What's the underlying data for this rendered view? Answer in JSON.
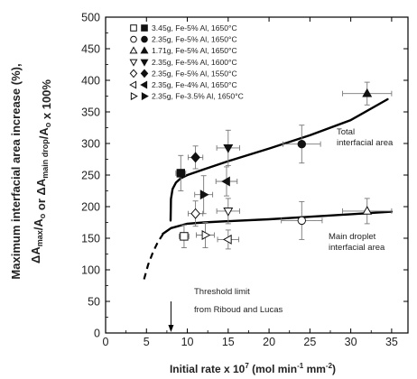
{
  "chart_data": {
    "type": "scatter",
    "xlabel": "Initial rate x 10⁷ (mol min⁻¹ mm⁻²)",
    "ylabel_line1": "Maximum interfacial area increase (%),",
    "ylabel_line2": "ΔAmax/Ao or ΔAmain drop/Ao x 100%",
    "xlim": [
      0,
      37
    ],
    "ylim": [
      0,
      500
    ],
    "xticks": [
      0,
      5,
      10,
      15,
      20,
      25,
      30,
      35
    ],
    "yticks": [
      0,
      50,
      100,
      150,
      200,
      250,
      300,
      350,
      400,
      450,
      500
    ],
    "series": [
      {
        "name": "3.45g, Fe-5% Al, 1650°C",
        "marker": "square",
        "points": [
          {
            "x": 9.2,
            "y": 253,
            "ex": 0.6,
            "ey": 28,
            "filled": true
          },
          {
            "x": 9.6,
            "y": 153,
            "ex": 0.6,
            "ey": 18,
            "filled": false
          }
        ]
      },
      {
        "name": "2.35g, Fe-5% Al, 1650°C",
        "marker": "circle",
        "points": [
          {
            "x": 24.0,
            "y": 299,
            "ex": 2.3,
            "ey": 30,
            "filled": true
          },
          {
            "x": 24.0,
            "y": 178,
            "ex": 2.5,
            "ey": 30,
            "filled": false
          }
        ]
      },
      {
        "name": "1.71g, Fe-5% Al, 1650°C",
        "marker": "triangle-up",
        "points": [
          {
            "x": 32.0,
            "y": 379,
            "ex": 3.0,
            "ey": 18,
            "filled": true
          },
          {
            "x": 32.0,
            "y": 193,
            "ex": 3.0,
            "ey": 20,
            "filled": false
          }
        ]
      },
      {
        "name": "2.35g, Fe-5% Al, 1600°C",
        "marker": "triangle-down",
        "points": [
          {
            "x": 15.0,
            "y": 293,
            "ex": 1.4,
            "ey": 28,
            "filled": true
          },
          {
            "x": 15.0,
            "y": 193,
            "ex": 1.4,
            "ey": 20,
            "filled": false
          }
        ]
      },
      {
        "name": "2.35g, Fe-5% Al, 1550°C",
        "marker": "diamond",
        "points": [
          {
            "x": 11.0,
            "y": 278,
            "ex": 0.9,
            "ey": 18,
            "filled": true
          },
          {
            "x": 11.0,
            "y": 189,
            "ex": 0.9,
            "ey": 20,
            "filled": false
          }
        ]
      },
      {
        "name": "2.35g, Fe-4% Al, 1650°C",
        "marker": "triangle-left",
        "points": [
          {
            "x": 14.8,
            "y": 240,
            "ex": 1.3,
            "ey": 23,
            "filled": true
          },
          {
            "x": 15.0,
            "y": 148,
            "ex": 1.3,
            "ey": 15,
            "filled": false
          }
        ]
      },
      {
        "name": "2.35g, Fe-3.5% Al, 1650°C",
        "marker": "triangle-right",
        "points": [
          {
            "x": 12.0,
            "y": 219,
            "ex": 1.1,
            "ey": 30,
            "filled": true
          },
          {
            "x": 12.2,
            "y": 155,
            "ex": 1.1,
            "ey": 20,
            "filled": false
          }
        ]
      }
    ],
    "curves": [
      {
        "name": "Total interfacial area",
        "label_lines": [
          "Total",
          "interfacial area"
        ],
        "x": [
          7.95,
          8.0,
          8.2,
          8.6,
          9.2,
          10.0,
          12.0,
          15.0,
          20.0,
          25.0,
          30.0,
          34.5
        ],
        "y": [
          178,
          212,
          228,
          238,
          245,
          250,
          259,
          272,
          292,
          313,
          337,
          370
        ]
      },
      {
        "name": "Main droplet interfacial area",
        "label_lines": [
          "Main droplet",
          "interfacial area"
        ],
        "x": [
          7.0,
          8.0,
          10.0,
          12.0,
          15.0,
          20.0,
          25.0,
          30.0,
          35.0
        ],
        "y": [
          157,
          166,
          173,
          175,
          177,
          180,
          184,
          188,
          192
        ]
      }
    ],
    "dashed_extension": {
      "x": [
        4.7,
        5.2,
        5.8,
        6.4,
        7.0
      ],
      "y": [
        85,
        108,
        128,
        144,
        156
      ]
    },
    "annotation": {
      "lines": [
        "Threshold limit",
        "from Riboud and Lucas"
      ],
      "x": 8.0
    }
  }
}
